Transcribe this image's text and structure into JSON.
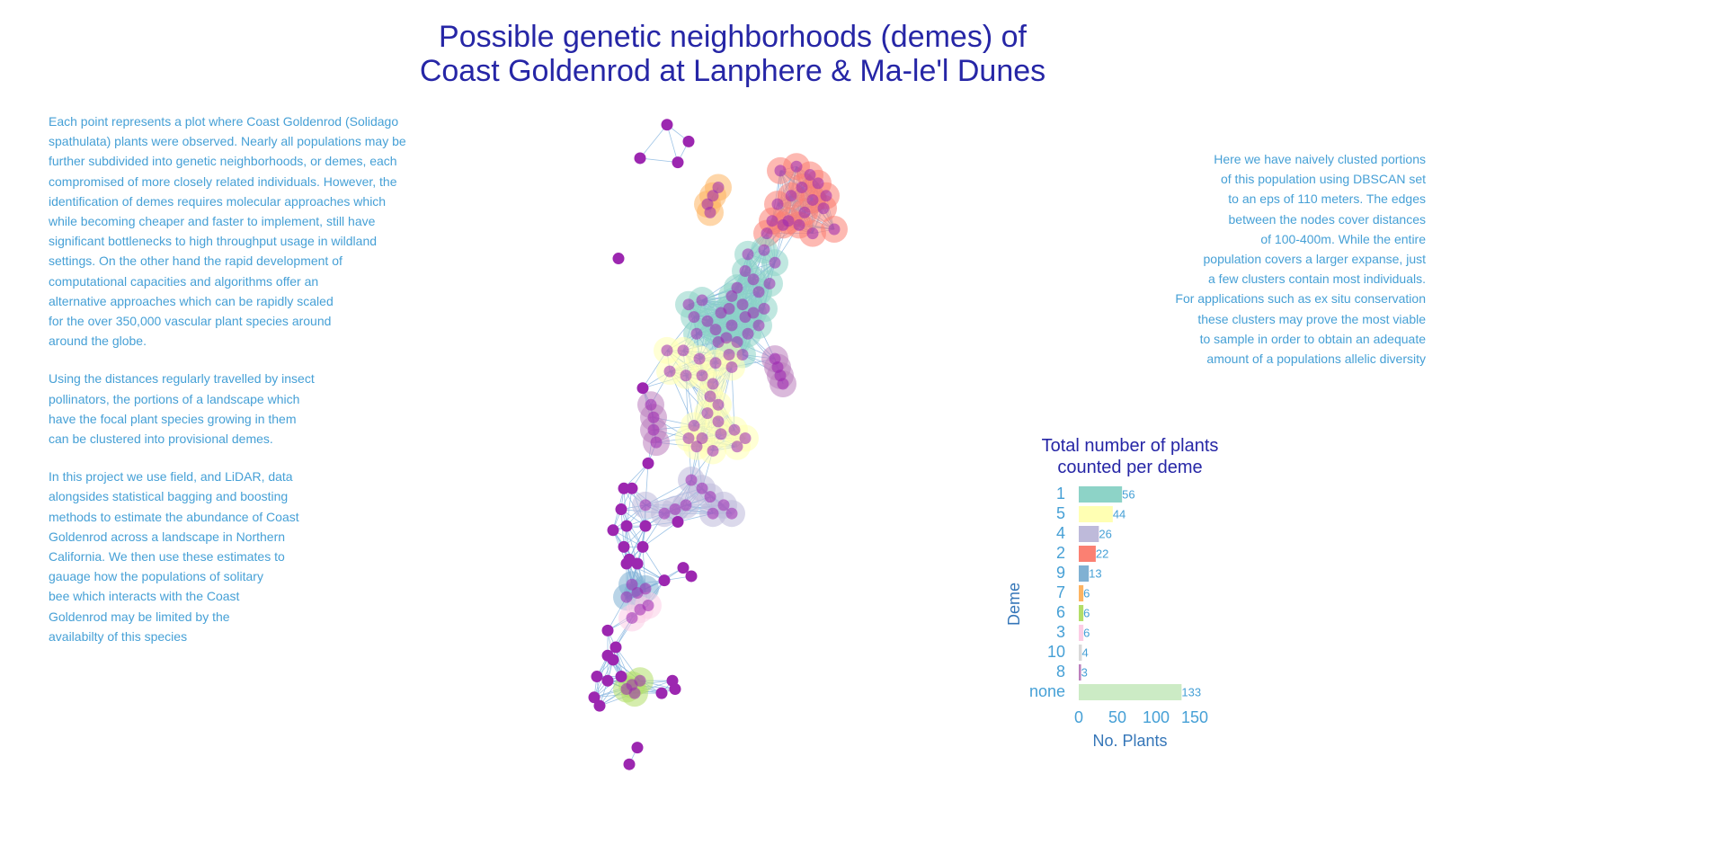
{
  "title": {
    "line1": "Possible genetic neighborhoods (demes) of",
    "line2": "Coast Goldenrod at Lanphere & Ma-le'l Dunes"
  },
  "left_text": {
    "paragraph1": [
      "Each point represents a plot where Coast Goldenrod (Solidago",
      " spathulata) plants were observed. Nearly all populations may be",
      " further subdivided into genetic neighborhoods, or demes, each",
      " compromised of more closely related individuals. However, the",
      " identification of demes requires molecular approaches which",
      " while becoming cheaper and faster to implement, still have",
      " significant bottlenecks to high throughput usage in wildland",
      " settings. On the other hand the rapid development of",
      " computational capacities and algorithms offer an",
      " alternative approaches which can be rapidly scaled",
      " for the over 350,000 vascular plant species around",
      " around the globe."
    ],
    "paragraph2": [
      " Using the distances regularly travelled by insect",
      " pollinators, the portions of a landscape which",
      " have the focal plant species growing in them",
      " can be clustered into provisional demes."
    ],
    "paragraph3": [
      " In this project we use field, and LiDAR, data",
      " alongsides statistical bagging and boosting",
      " methods to estimate the abundance of Coast",
      " Goldenrod across a landscape in Northern",
      " California. We then use these estimates to",
      " gauage how the populations of solitary",
      " bee which interacts with the Coast",
      " Goldenrod may be limited by the",
      " availabilty of this species"
    ]
  },
  "right_text": [
    "Here we have naively clusted portions",
    "of this population using DBSCAN set",
    "to an eps of 110 meters. The edges",
    "between the nodes cover distances",
    "of 100-400m. While the entire",
    "population covers a larger expanse, just",
    "a few clusters contain most individuals.",
    "For applications such as ex situ conservation",
    "these clusters may prove the most viable",
    "to sample in order to obtain an adequate",
    "amount of a populations allelic diversity"
  ],
  "colors": {
    "title": "#2626a6",
    "body_text": "#46a0d6",
    "node_unclustered": "#9c27b0",
    "edge": "#7fb0de",
    "deme_1": "#8dd3c7",
    "deme_2": "#fb8072",
    "deme_3": "#fccde5",
    "deme_4": "#bebada",
    "deme_5": "#ffffb3",
    "deme_6": "#b3de69",
    "deme_7": "#fdb462",
    "deme_8": "#bc80bd",
    "deme_9": "#80b1d3",
    "deme_10": "#d9d9d9",
    "none": "#ccebc5"
  },
  "chart_data": [
    {
      "type": "bar",
      "orientation": "horizontal",
      "title": "Total number of plants\ncounted per deme",
      "categories": [
        "1",
        "5",
        "4",
        "2",
        "9",
        "7",
        "6",
        "3",
        "10",
        "8",
        "none"
      ],
      "values": [
        56,
        44,
        26,
        22,
        13,
        6,
        6,
        6,
        4,
        3,
        133
      ],
      "data_labels": [
        "56",
        "44",
        "26",
        "22",
        "13",
        "6",
        "6",
        "6",
        "4",
        "3",
        "133"
      ],
      "xlabel": "No. Plants",
      "ylabel": "Deme",
      "xlim": [
        0,
        150
      ],
      "xticks": [
        "0",
        "50",
        "100",
        "150"
      ],
      "bar_colors": [
        "#8dd3c7",
        "#ffffb3",
        "#bebada",
        "#fb8072",
        "#80b1d3",
        "#fdb462",
        "#b3de69",
        "#fccde5",
        "#d9d9d9",
        "#bc80bd",
        "#ccebc5"
      ],
      "grid": false,
      "legend": "none"
    },
    {
      "type": "scatter",
      "subtype": "network",
      "description_of_encoding": "nodes are survey plots; hulls mark DBSCAN deme clusters",
      "clusters": [
        {
          "deme": "2",
          "color": "#fb8072",
          "points": [
            [
              0.46,
              0.06
            ],
            [
              0.52,
              0.05
            ],
            [
              0.57,
              0.07
            ],
            [
              0.54,
              0.1
            ],
            [
              0.6,
              0.09
            ],
            [
              0.63,
              0.12
            ],
            [
              0.58,
              0.13
            ],
            [
              0.5,
              0.12
            ],
            [
              0.45,
              0.14
            ],
            [
              0.62,
              0.15
            ],
            [
              0.55,
              0.16
            ],
            [
              0.49,
              0.18
            ],
            [
              0.43,
              0.18
            ],
            [
              0.53,
              0.19
            ],
            [
              0.66,
              0.2
            ],
            [
              0.58,
              0.21
            ],
            [
              0.41,
              0.21
            ],
            [
              0.47,
              0.19
            ]
          ]
        },
        {
          "deme": "7",
          "color": "#fdb462",
          "points": [
            [
              0.23,
              0.1
            ],
            [
              0.21,
              0.12
            ],
            [
              0.19,
              0.14
            ],
            [
              0.2,
              0.16
            ]
          ]
        },
        {
          "deme": "1",
          "color": "#8dd3c7",
          "points": [
            [
              0.34,
              0.26
            ],
            [
              0.4,
              0.25
            ],
            [
              0.44,
              0.28
            ],
            [
              0.33,
              0.3
            ],
            [
              0.36,
              0.32
            ],
            [
              0.3,
              0.34
            ],
            [
              0.38,
              0.35
            ],
            [
              0.42,
              0.33
            ],
            [
              0.28,
              0.36
            ],
            [
              0.32,
              0.38
            ],
            [
              0.36,
              0.4
            ],
            [
              0.4,
              0.39
            ],
            [
              0.24,
              0.4
            ],
            [
              0.19,
              0.42
            ],
            [
              0.14,
              0.41
            ],
            [
              0.12,
              0.38
            ],
            [
              0.17,
              0.37
            ],
            [
              0.22,
              0.44
            ],
            [
              0.26,
              0.46
            ],
            [
              0.3,
              0.47
            ],
            [
              0.34,
              0.45
            ],
            [
              0.38,
              0.43
            ],
            [
              0.28,
              0.43
            ],
            [
              0.23,
              0.47
            ],
            [
              0.32,
              0.5
            ],
            [
              0.15,
              0.45
            ],
            [
              0.33,
              0.41
            ],
            [
              0.27,
              0.39
            ]
          ]
        },
        {
          "deme": "5",
          "color": "#ffffb3",
          "points": [
            [
              0.04,
              0.49
            ],
            [
              0.1,
              0.49
            ],
            [
              0.16,
              0.51
            ],
            [
              0.05,
              0.54
            ],
            [
              0.11,
              0.55
            ],
            [
              0.17,
              0.55
            ],
            [
              0.22,
              0.52
            ],
            [
              0.27,
              0.5
            ],
            [
              0.28,
              0.53
            ],
            [
              0.21,
              0.57
            ],
            [
              0.2,
              0.6
            ],
            [
              0.23,
              0.62
            ],
            [
              0.19,
              0.64
            ],
            [
              0.23,
              0.66
            ],
            [
              0.14,
              0.67
            ],
            [
              0.12,
              0.7
            ],
            [
              0.17,
              0.7
            ],
            [
              0.24,
              0.69
            ],
            [
              0.29,
              0.68
            ],
            [
              0.33,
              0.7
            ],
            [
              0.3,
              0.72
            ],
            [
              0.21,
              0.73
            ],
            [
              0.15,
              0.72
            ]
          ]
        },
        {
          "deme": "8",
          "color": "#bc80bd",
          "points": [
            [
              0.44,
              0.51
            ],
            [
              0.45,
              0.53
            ],
            [
              0.46,
              0.55
            ],
            [
              0.47,
              0.57
            ],
            [
              -0.02,
              0.62
            ],
            [
              -0.01,
              0.65
            ],
            [
              -0.01,
              0.68
            ],
            [
              0.0,
              0.71
            ]
          ]
        },
        {
          "deme": "4",
          "color": "#bebada",
          "points": [
            [
              0.13,
              0.8
            ],
            [
              0.17,
              0.82
            ],
            [
              0.2,
              0.84
            ],
            [
              0.11,
              0.86
            ],
            [
              0.07,
              0.87
            ],
            [
              0.03,
              0.88
            ],
            [
              -0.04,
              0.86
            ],
            [
              0.25,
              0.86
            ],
            [
              0.28,
              0.88
            ],
            [
              0.21,
              0.88
            ]
          ]
        },
        {
          "deme": "9",
          "color": "#80b1d3",
          "points": [
            [
              -0.11,
              1.08
            ],
            [
              -0.07,
              1.07
            ],
            [
              -0.04,
              1.06
            ],
            [
              -0.09,
              1.05
            ]
          ]
        },
        {
          "deme": "3",
          "color": "#fccde5",
          "points": [
            [
              -0.06,
              1.11
            ],
            [
              -0.03,
              1.1
            ],
            [
              -0.09,
              1.13
            ]
          ]
        },
        {
          "deme": "6",
          "color": "#b3de69",
          "points": [
            [
              -0.09,
              1.29
            ],
            [
              -0.06,
              1.28
            ],
            [
              -0.08,
              1.31
            ],
            [
              -0.11,
              1.3
            ]
          ]
        }
      ],
      "unclustered": [
        [
          0.04,
          -0.05
        ],
        [
          0.12,
          -0.01
        ],
        [
          -0.06,
          0.03
        ],
        [
          0.08,
          0.04
        ],
        [
          -0.14,
          0.27
        ],
        [
          -0.05,
          0.58
        ],
        [
          -0.03,
          0.76
        ],
        [
          -0.12,
          0.82
        ],
        [
          -0.09,
          0.82
        ],
        [
          -0.13,
          0.87
        ],
        [
          -0.16,
          0.92
        ],
        [
          -0.11,
          0.91
        ],
        [
          -0.12,
          0.96
        ],
        [
          -0.05,
          0.96
        ],
        [
          -0.04,
          0.91
        ],
        [
          0.08,
          0.9
        ],
        [
          0.1,
          1.01
        ],
        [
          0.13,
          1.03
        ],
        [
          -0.1,
          0.99
        ],
        [
          0.03,
          1.04
        ],
        [
          -0.18,
          1.16
        ],
        [
          -0.15,
          1.2
        ],
        [
          -0.18,
          1.22
        ],
        [
          -0.16,
          1.23
        ],
        [
          -0.22,
          1.27
        ],
        [
          -0.18,
          1.28
        ],
        [
          -0.13,
          1.27
        ],
        [
          -0.23,
          1.32
        ],
        [
          -0.21,
          1.34
        ],
        [
          0.02,
          1.31
        ],
        [
          0.06,
          1.28
        ],
        [
          0.07,
          1.3
        ],
        [
          -0.07,
          1.44
        ],
        [
          -0.1,
          1.48
        ],
        [
          -0.11,
          1.0
        ],
        [
          -0.07,
          1.0
        ]
      ]
    }
  ]
}
